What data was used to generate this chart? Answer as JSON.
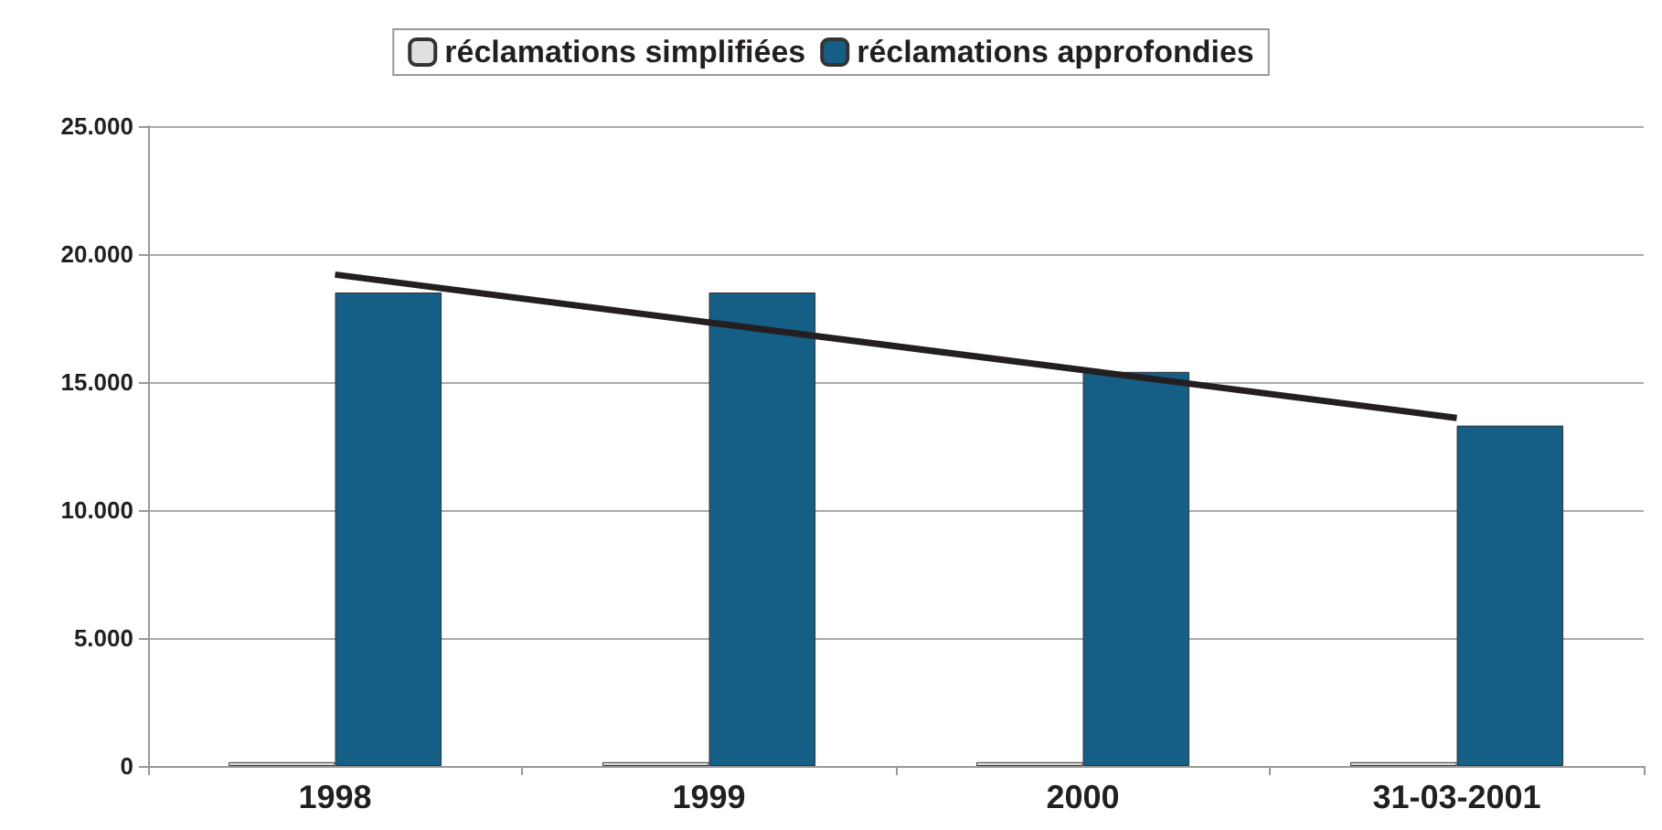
{
  "chart_data": {
    "type": "bar",
    "categories": [
      "1998",
      "1999",
      "2000",
      "31-03-2001"
    ],
    "series": [
      {
        "name": "réclamations simplifiées",
        "color": "#e0e0e0",
        "values": [
          150,
          150,
          150,
          150
        ]
      },
      {
        "name": "réclamations approfondies",
        "color": "#155e85",
        "values": [
          18500,
          18500,
          15400,
          13300
        ]
      },
      {
        "type": "line",
        "color": "#231f20",
        "values": [
          19200,
          17330,
          15470,
          13600
        ],
        "marker": "none"
      }
    ],
    "ylim": [
      0,
      25000
    ],
    "yticks": [
      0,
      {
        "value": 5000,
        "label": "5.000"
      },
      {
        "value": 10000,
        "label": "10.000"
      },
      {
        "value": 15000,
        "label": "15.000"
      },
      {
        "value": 20000,
        "label": "20.000"
      },
      {
        "value": 25000,
        "label": "25.000"
      }
    ],
    "grid": "y",
    "legend": "top"
  }
}
